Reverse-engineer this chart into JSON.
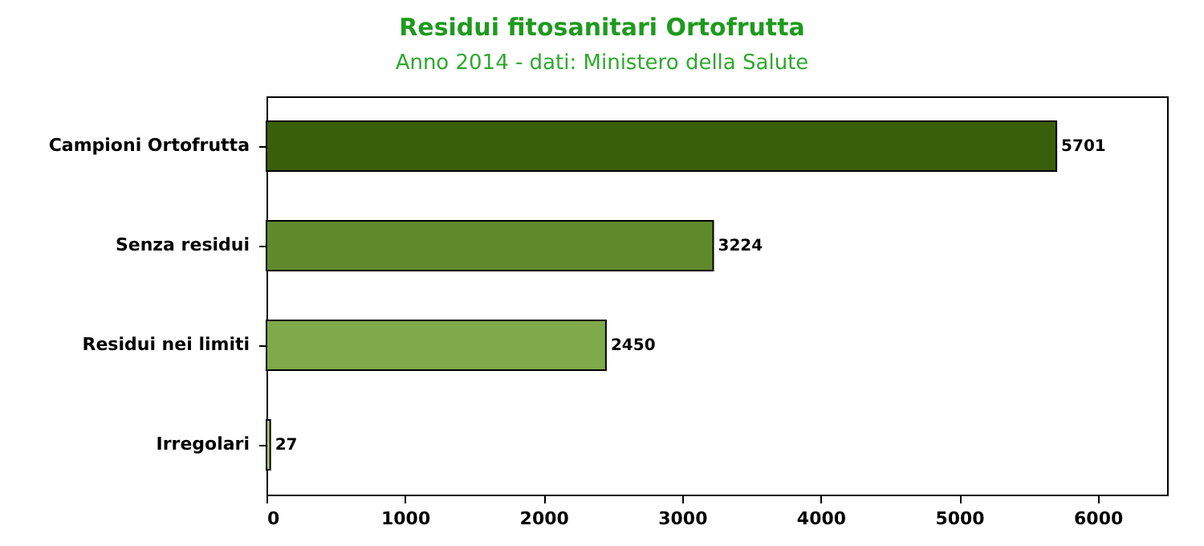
{
  "chart_data": {
    "type": "bar",
    "orientation": "horizontal",
    "title": "Residui fitosanitari Ortofrutta",
    "subtitle": "Anno 2014 - dati: Ministero della Salute",
    "categories": [
      "Campioni Ortofrutta",
      "Senza residui",
      "Residui nei limiti",
      "Irregolari"
    ],
    "values": [
      5701,
      3224,
      2450,
      27
    ],
    "colors": [
      "#3a5f0b",
      "#5e8a2c",
      "#7faa4a",
      "#a9c97c"
    ],
    "xlim": [
      0,
      6500
    ],
    "xticks": [
      0,
      1000,
      2000,
      3000,
      4000,
      5000,
      6000
    ],
    "data_labels": true,
    "grid": false
  }
}
